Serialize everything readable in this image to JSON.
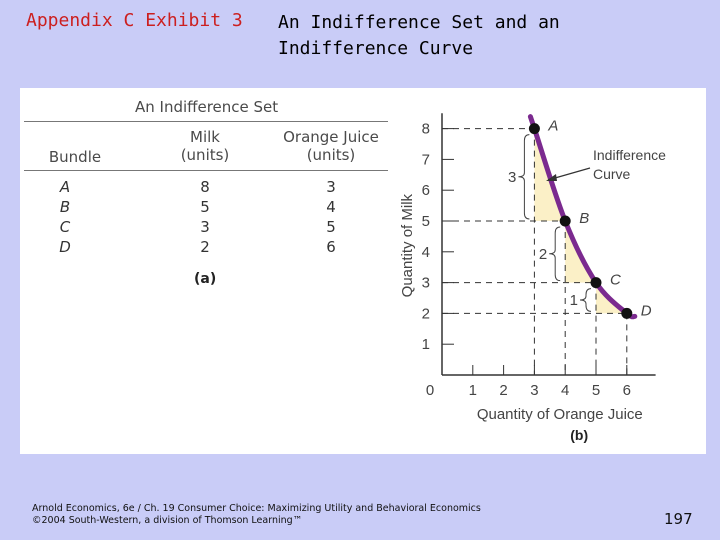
{
  "slide": {
    "title_left": "Appendix C Exhibit 3",
    "title_right_line1": "An Indifference Set and an",
    "title_right_line2": "Indifference Curve",
    "footer_line1": "Arnold Economics, 6e / Ch. 19 Consumer Choice: Maximizing Utility and Behavioral Economics",
    "footer_line2": "©2004 South-Western, a division of Thomson Learning™",
    "page_number": "197"
  },
  "table": {
    "title": "An Indifference Set",
    "headers": [
      "Bundle",
      "Milk\n(units)",
      "Orange Juice\n(units)"
    ],
    "rows": [
      {
        "bundle": "A",
        "milk": "8",
        "oj": "3"
      },
      {
        "bundle": "B",
        "milk": "5",
        "oj": "4"
      },
      {
        "bundle": "C",
        "milk": "3",
        "oj": "5"
      },
      {
        "bundle": "D",
        "milk": "2",
        "oj": "6"
      }
    ],
    "label": "(a)"
  },
  "chart_data": {
    "type": "line",
    "label": "(b)",
    "xlabel": "Quantity of Orange Juice",
    "ylabel": "Quantity of Milk",
    "xlim": [
      0,
      7
    ],
    "ylim": [
      0,
      8.5
    ],
    "x_ticks": [
      "1",
      "2",
      "3",
      "4",
      "5",
      "6"
    ],
    "y_ticks": [
      "1",
      "2",
      "3",
      "4",
      "5",
      "6",
      "7",
      "8"
    ],
    "origin_label": "0",
    "curve_label_line1": "Indifference",
    "curve_label_line2": "Curve",
    "points": [
      {
        "label": "A",
        "x": 3,
        "y": 8
      },
      {
        "label": "B",
        "x": 4,
        "y": 5
      },
      {
        "label": "C",
        "x": 5,
        "y": 3
      },
      {
        "label": "D",
        "x": 6,
        "y": 2
      }
    ],
    "drop_annotations": [
      "3",
      "2",
      "1"
    ],
    "curve_color": "#7b2a8f",
    "shade_color": "#fbf0c7"
  }
}
